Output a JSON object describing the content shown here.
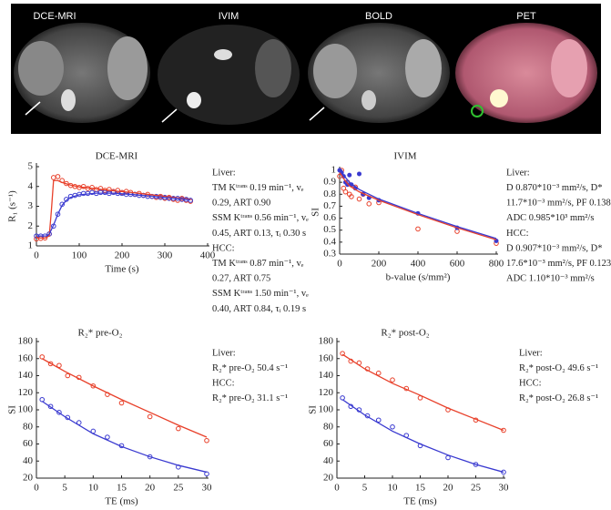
{
  "images": [
    {
      "label": "DCE-MRI"
    },
    {
      "label": "IVIM"
    },
    {
      "label": "BOLD"
    },
    {
      "label": "PET"
    }
  ],
  "chart_data": [
    {
      "type": "scatter",
      "title": "DCE-MRI",
      "x_label": "Time (s)",
      "y_label": "R₁ (s⁻¹)",
      "xlim": [
        0,
        400
      ],
      "xticks": [
        0,
        100,
        200,
        300,
        400
      ],
      "ylim": [
        1,
        5
      ],
      "yticks": [
        1,
        2,
        3,
        4,
        5
      ],
      "annotation": [
        "Liver:",
        "TM Kᵗʳᵃⁿˢ 0.19 min⁻¹, vₑ",
        "0.29, ART 0.90",
        "SSM Kᵗʳᵃⁿˢ 0.56 min⁻¹, vₑ",
        "0.45, ART 0.13, τᵢ 0.30 s",
        "HCC:",
        "TM Kᵗʳᵃⁿˢ 0.87 min⁻¹, vₑ",
        "0.27, ART 0.75",
        "SSM Kᵗʳᵃⁿˢ 1.50 min⁻¹, vₑ",
        "0.40, ART 0.84, τᵢ 0.19 s"
      ],
      "series": [
        {
          "style": "points",
          "color": "#e8402a",
          "x": [
            0,
            10,
            20,
            30,
            40,
            50,
            60,
            70,
            80,
            90,
            100,
            110,
            120,
            130,
            140,
            150,
            160,
            170,
            180,
            190,
            200,
            210,
            220,
            230,
            240,
            250,
            260,
            270,
            280,
            290,
            300,
            310,
            320,
            330,
            340,
            350,
            360
          ],
          "values": [
            1.35,
            1.38,
            1.4,
            1.6,
            4.45,
            4.5,
            4.3,
            4.15,
            4.05,
            4.0,
            3.95,
            4.0,
            3.9,
            3.95,
            3.85,
            3.9,
            3.8,
            3.85,
            3.75,
            3.8,
            3.7,
            3.75,
            3.7,
            3.6,
            3.65,
            3.55,
            3.6,
            3.5,
            3.45,
            3.5,
            3.4,
            3.45,
            3.35,
            3.3,
            3.4,
            3.3,
            3.25
          ]
        },
        {
          "style": "points",
          "color": "#3a3ad0",
          "x": [
            0,
            10,
            20,
            30,
            40,
            50,
            60,
            70,
            80,
            90,
            100,
            110,
            120,
            130,
            140,
            150,
            160,
            170,
            180,
            190,
            200,
            210,
            220,
            230,
            240,
            250,
            260,
            270,
            280,
            290,
            300,
            310,
            320,
            330,
            340,
            350,
            360
          ],
          "values": [
            1.5,
            1.5,
            1.5,
            1.6,
            2.0,
            2.6,
            3.1,
            3.35,
            3.5,
            3.55,
            3.6,
            3.65,
            3.65,
            3.7,
            3.65,
            3.7,
            3.7,
            3.65,
            3.7,
            3.65,
            3.65,
            3.6,
            3.6,
            3.6,
            3.55,
            3.55,
            3.5,
            3.5,
            3.5,
            3.45,
            3.45,
            3.4,
            3.4,
            3.4,
            3.35,
            3.35,
            3.3
          ]
        },
        {
          "style": "line",
          "color": "#e8402a",
          "x": [
            0,
            20,
            30,
            35,
            40,
            50,
            60,
            80,
            100,
            140,
            180,
            220,
            260,
            300,
            340,
            360
          ],
          "values": [
            1.4,
            1.4,
            1.5,
            2.8,
            4.3,
            4.3,
            4.2,
            4.07,
            3.98,
            3.88,
            3.78,
            3.7,
            3.6,
            3.5,
            3.4,
            3.35
          ]
        },
        {
          "style": "line",
          "color": "#3a3ad0",
          "x": [
            0,
            25,
            30,
            40,
            50,
            60,
            70,
            80,
            100,
            140,
            180,
            220,
            260,
            300,
            340,
            360
          ],
          "values": [
            1.5,
            1.5,
            1.6,
            2.05,
            2.6,
            3.05,
            3.3,
            3.45,
            3.58,
            3.66,
            3.66,
            3.6,
            3.53,
            3.45,
            3.37,
            3.32
          ]
        }
      ]
    },
    {
      "type": "scatter",
      "title": "IVIM",
      "x_label": "b-value (s/mm²)",
      "y_label": "SI",
      "xlim": [
        0,
        800
      ],
      "xticks": [
        0,
        200,
        400,
        600,
        800
      ],
      "ylim": [
        0.3,
        1
      ],
      "yticks": [
        0.3,
        0.4,
        0.5,
        0.6,
        0.7,
        0.8,
        0.9,
        1
      ],
      "annotation": [
        "Liver:",
        "D 0.870*10⁻³ mm²/s, D*",
        "11.7*10⁻³ mm²/s, PF 0.138,",
        "ADC 0.985*10³ mm²/s",
        "HCC:",
        "D 0.907*10⁻³ mm²/s, D*",
        "17.6*10⁻³ mm²/s, PF 0.123,",
        "ADC 1.10*10⁻³ mm²/s"
      ],
      "series": [
        {
          "style": "points",
          "color": "#e8402a",
          "x": [
            0,
            10,
            20,
            30,
            40,
            50,
            60,
            80,
            100,
            120,
            150,
            200,
            400,
            600,
            800
          ],
          "values": [
            0.95,
            1,
            0.85,
            0.82,
            0.9,
            0.8,
            0.78,
            0.86,
            0.76,
            0.8,
            0.72,
            0.73,
            0.51,
            0.49,
            0.39
          ]
        },
        {
          "style": "dots",
          "color": "#3a3ad0",
          "x": [
            0,
            10,
            20,
            30,
            40,
            50,
            60,
            80,
            100,
            120,
            150,
            200,
            400,
            600,
            800
          ],
          "values": [
            1,
            0.98,
            0.95,
            0.9,
            0.88,
            0.96,
            0.88,
            0.85,
            0.97,
            0.8,
            0.77,
            0.75,
            0.64,
            0.52,
            0.41
          ]
        },
        {
          "style": "line",
          "color": "#e8402a",
          "x": [
            0,
            25,
            50,
            100,
            200,
            400,
            600,
            800
          ],
          "values": [
            0.98,
            0.92,
            0.87,
            0.82,
            0.75,
            0.63,
            0.52,
            0.42
          ]
        },
        {
          "style": "line",
          "color": "#3a3ad0",
          "x": [
            0,
            25,
            50,
            100,
            200,
            400,
            600,
            800
          ],
          "values": [
            1,
            0.95,
            0.9,
            0.84,
            0.76,
            0.64,
            0.53,
            0.43
          ]
        }
      ]
    },
    {
      "type": "scatter",
      "title": "R₂* pre-O₂",
      "x_label": "TE (ms)",
      "y_label": "SI",
      "xlim": [
        0,
        30
      ],
      "xticks": [
        0,
        5,
        10,
        15,
        20,
        25,
        30
      ],
      "ylim": [
        20,
        180
      ],
      "yticks": [
        20,
        40,
        60,
        80,
        100,
        120,
        140,
        160,
        180
      ],
      "annotation": [
        "Liver:",
        "R₂* pre-O₂ 50.4 s⁻¹",
        "HCC:",
        "R₂* pre-O₂ 31.1 s⁻¹"
      ],
      "series": [
        {
          "style": "points",
          "color": "#e8402a",
          "x": [
            1,
            2.5,
            4,
            5.5,
            7.5,
            10,
            12.5,
            15,
            20,
            25,
            30
          ],
          "values": [
            162,
            154,
            152,
            140,
            138,
            128,
            118,
            108,
            92,
            78,
            64
          ]
        },
        {
          "style": "points",
          "color": "#3a3ad0",
          "x": [
            1,
            2.5,
            4,
            5.5,
            7.5,
            10,
            12.5,
            15,
            20,
            25,
            30
          ],
          "values": [
            112,
            104,
            97,
            91,
            85,
            75,
            68,
            58,
            45,
            33,
            25
          ]
        },
        {
          "style": "line",
          "color": "#e8402a",
          "x": [
            1,
            5,
            10,
            15,
            20,
            25,
            30
          ],
          "values": [
            160,
            145,
            128,
            112,
            97,
            82,
            68
          ]
        },
        {
          "style": "line",
          "color": "#3a3ad0",
          "x": [
            1,
            5,
            10,
            15,
            20,
            25,
            30
          ],
          "values": [
            110,
            92,
            72,
            57,
            45,
            35,
            27
          ]
        }
      ]
    },
    {
      "type": "scatter",
      "title": "R₂* post-O₂",
      "x_label": "TE (ms)",
      "y_label": "SI",
      "xlim": [
        0,
        30
      ],
      "xticks": [
        0,
        5,
        10,
        15,
        20,
        25,
        30
      ],
      "ylim": [
        20,
        180
      ],
      "yticks": [
        20,
        40,
        60,
        80,
        100,
        120,
        140,
        160,
        180
      ],
      "annotation": [
        "Liver:",
        "R₂* post-O₂ 49.6 s⁻¹",
        "HCC:",
        "R₂* post-O₂ 26.8 s⁻¹"
      ],
      "series": [
        {
          "style": "points",
          "color": "#e8402a",
          "x": [
            1,
            2.5,
            4,
            5.5,
            7.5,
            10,
            12.5,
            15,
            20,
            25,
            30
          ],
          "values": [
            166,
            157,
            155,
            148,
            143,
            135,
            125,
            114,
            100,
            88,
            76
          ]
        },
        {
          "style": "points",
          "color": "#3a3ad0",
          "x": [
            1,
            2.5,
            4,
            5.5,
            7.5,
            10,
            12.5,
            15,
            20,
            25,
            30
          ],
          "values": [
            114,
            104,
            100,
            93,
            88,
            80,
            70,
            58,
            44,
            36,
            27
          ]
        },
        {
          "style": "line",
          "color": "#e8402a",
          "x": [
            1,
            5,
            10,
            15,
            20,
            25,
            30
          ],
          "values": [
            165,
            148,
            131,
            117,
            102,
            89,
            76
          ]
        },
        {
          "style": "line",
          "color": "#3a3ad0",
          "x": [
            1,
            5,
            10,
            15,
            20,
            25,
            30
          ],
          "values": [
            112,
            94,
            75,
            60,
            47,
            36,
            27
          ]
        }
      ]
    }
  ]
}
